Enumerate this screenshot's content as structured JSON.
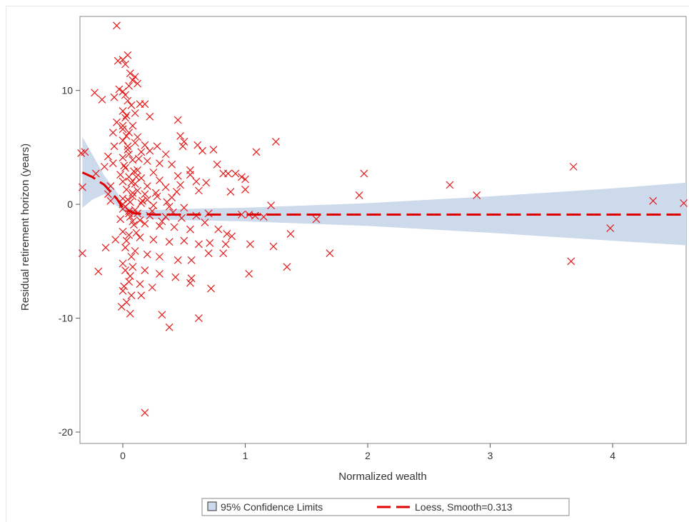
{
  "chart_data": {
    "type": "scatter",
    "title": "",
    "xlabel": "Normalized wealth",
    "ylabel": "Residual retirement horizon (years)",
    "xlim": [
      -0.35,
      4.6
    ],
    "ylim": [
      -21,
      16.5
    ],
    "xticks": [
      0,
      1,
      2,
      3,
      4
    ],
    "yticks": [
      -20,
      -10,
      0,
      10
    ],
    "grid": false,
    "legend_position": "bottom",
    "legend": [
      {
        "kind": "band",
        "label": "95% Confidence Limits",
        "color": "#ccdaeb"
      },
      {
        "kind": "dashed-line",
        "label": "Loess, Smooth=0.313",
        "color": "#e00000"
      }
    ],
    "marker_color": "#e51919",
    "marker": "x",
    "series": [
      {
        "type": "scatter",
        "points": [
          [
            -0.05,
            15.7
          ],
          [
            0.0,
            12.7
          ],
          [
            0.04,
            13.1
          ],
          [
            0.02,
            12.3
          ],
          [
            -0.04,
            12.6
          ],
          [
            0.06,
            11.5
          ],
          [
            0.1,
            11.2
          ],
          [
            0.08,
            10.9
          ],
          [
            0.12,
            10.6
          ],
          [
            0.05,
            10.4
          ],
          [
            -0.03,
            10.1
          ],
          [
            0.0,
            9.9
          ],
          [
            0.02,
            9.6
          ],
          [
            -0.07,
            9.4
          ],
          [
            0.04,
            9.1
          ],
          [
            0.07,
            8.7
          ],
          [
            0.14,
            8.8
          ],
          [
            0.18,
            8.8
          ],
          [
            -0.23,
            9.8
          ],
          [
            -0.17,
            9.2
          ],
          [
            0.0,
            8.2
          ],
          [
            0.1,
            8.0
          ],
          [
            0.22,
            7.7
          ],
          [
            0.45,
            7.4
          ],
          [
            0.02,
            7.6
          ],
          [
            -0.05,
            7.2
          ],
          [
            0.08,
            6.9
          ],
          [
            0.0,
            6.6
          ],
          [
            0.05,
            6.3
          ],
          [
            -0.08,
            6.3
          ],
          [
            0.03,
            6.0
          ],
          [
            0.12,
            5.9
          ],
          [
            0.47,
            6.0
          ],
          [
            0.5,
            5.5
          ],
          [
            0.49,
            5.1
          ],
          [
            0.0,
            5.6
          ],
          [
            0.1,
            5.4
          ],
          [
            0.18,
            5.2
          ],
          [
            0.28,
            5.1
          ],
          [
            -0.07,
            5.1
          ],
          [
            0.04,
            4.8
          ],
          [
            0.15,
            4.6
          ],
          [
            0.22,
            4.7
          ],
          [
            0.35,
            4.4
          ],
          [
            0.61,
            5.2
          ],
          [
            0.65,
            4.7
          ],
          [
            0.74,
            4.8
          ],
          [
            -0.31,
            4.6
          ],
          [
            -0.34,
            4.5
          ],
          [
            -0.12,
            4.2
          ],
          [
            0.0,
            4.1
          ],
          [
            0.08,
            3.9
          ],
          [
            0.2,
            3.8
          ],
          [
            0.3,
            3.6
          ],
          [
            0.4,
            3.5
          ],
          [
            0.77,
            3.5
          ],
          [
            0.55,
            3.0
          ],
          [
            -0.08,
            3.6
          ],
          [
            -0.15,
            3.3
          ],
          [
            0.02,
            3.2
          ],
          [
            0.12,
            3.0
          ],
          [
            0.25,
            2.8
          ],
          [
            0.45,
            2.5
          ],
          [
            0.55,
            2.6
          ],
          [
            0.82,
            2.7
          ],
          [
            0.86,
            2.7
          ],
          [
            0.92,
            2.7
          ],
          [
            0.97,
            2.4
          ],
          [
            1.0,
            2.2
          ],
          [
            -0.02,
            2.6
          ],
          [
            -0.22,
            2.7
          ],
          [
            0.05,
            2.4
          ],
          [
            0.15,
            2.3
          ],
          [
            0.3,
            2.1
          ],
          [
            0.6,
            2.0
          ],
          [
            0.68,
            1.9
          ],
          [
            0.0,
            2.0
          ],
          [
            0.1,
            1.8
          ],
          [
            0.2,
            1.6
          ],
          [
            0.35,
            1.5
          ],
          [
            0.47,
            1.7
          ],
          [
            -0.33,
            1.5
          ],
          [
            -0.1,
            1.6
          ],
          [
            1.0,
            1.3
          ],
          [
            0.88,
            1.1
          ],
          [
            0.62,
            1.2
          ],
          [
            0.03,
            1.3
          ],
          [
            0.08,
            1.0
          ],
          [
            0.18,
            0.9
          ],
          [
            0.28,
            0.7
          ],
          [
            0.4,
            0.6
          ],
          [
            -0.12,
            0.9
          ],
          [
            -0.1,
            0.3
          ],
          [
            0.0,
            0.5
          ],
          [
            0.06,
            0.2
          ],
          [
            0.15,
            0.1
          ],
          [
            0.25,
            -0.1
          ],
          [
            0.38,
            -0.2
          ],
          [
            0.5,
            -0.3
          ],
          [
            1.21,
            -0.1
          ],
          [
            1.93,
            0.8
          ],
          [
            1.97,
            2.7
          ],
          [
            1.25,
            5.5
          ],
          [
            1.09,
            4.6
          ],
          [
            2.67,
            1.7
          ],
          [
            2.89,
            0.8
          ],
          [
            3.68,
            3.3
          ],
          [
            4.33,
            0.3
          ],
          [
            4.58,
            0.1
          ],
          [
            0.0,
            -0.4
          ],
          [
            0.05,
            -0.6
          ],
          [
            0.12,
            -0.8
          ],
          [
            0.22,
            -1.0
          ],
          [
            0.35,
            -1.1
          ],
          [
            0.48,
            -1.2
          ],
          [
            0.6,
            -1.0
          ],
          [
            0.7,
            -0.8
          ],
          [
            0.97,
            -0.9
          ],
          [
            1.03,
            -0.9
          ],
          [
            1.08,
            -1.0
          ],
          [
            1.15,
            -1.1
          ],
          [
            1.58,
            -1.3
          ],
          [
            -0.02,
            -1.3
          ],
          [
            0.08,
            -1.5
          ],
          [
            0.18,
            -1.7
          ],
          [
            0.3,
            -1.9
          ],
          [
            0.42,
            -2.0
          ],
          [
            0.55,
            -2.2
          ],
          [
            0.67,
            -1.6
          ],
          [
            0.78,
            -2.2
          ],
          [
            0.85,
            -2.6
          ],
          [
            0.89,
            -2.8
          ],
          [
            1.37,
            -2.6
          ],
          [
            3.98,
            -2.1
          ],
          [
            0.0,
            -2.4
          ],
          [
            0.05,
            -2.7
          ],
          [
            0.14,
            -2.9
          ],
          [
            0.25,
            -3.1
          ],
          [
            0.38,
            -3.3
          ],
          [
            0.5,
            -3.2
          ],
          [
            0.62,
            -3.5
          ],
          [
            0.71,
            -3.4
          ],
          [
            0.84,
            -3.5
          ],
          [
            1.04,
            -3.5
          ],
          [
            1.23,
            -3.7
          ],
          [
            -0.06,
            -3.1
          ],
          [
            -0.14,
            -3.8
          ],
          [
            -0.33,
            -4.3
          ],
          [
            0.02,
            -3.8
          ],
          [
            0.1,
            -4.1
          ],
          [
            0.2,
            -4.4
          ],
          [
            0.3,
            -4.6
          ],
          [
            0.45,
            -4.9
          ],
          [
            0.56,
            -4.9
          ],
          [
            0.7,
            -4.3
          ],
          [
            0.82,
            -4.3
          ],
          [
            1.69,
            -4.3
          ],
          [
            1.34,
            -5.5
          ],
          [
            3.66,
            -5.0
          ],
          [
            -0.2,
            -5.9
          ],
          [
            0.0,
            -5.2
          ],
          [
            0.08,
            -5.5
          ],
          [
            0.18,
            -5.8
          ],
          [
            0.3,
            -6.1
          ],
          [
            0.43,
            -6.4
          ],
          [
            0.56,
            -6.5
          ],
          [
            1.03,
            -6.1
          ],
          [
            0.05,
            -6.8
          ],
          [
            0.14,
            -7.0
          ],
          [
            0.24,
            -7.3
          ],
          [
            0.55,
            -6.9
          ],
          [
            0.72,
            -7.4
          ],
          [
            0.0,
            -7.6
          ],
          [
            0.07,
            -8.0
          ],
          [
            0.15,
            -8.0
          ],
          [
            0.03,
            -8.6
          ],
          [
            -0.01,
            -9.0
          ],
          [
            0.06,
            -9.6
          ],
          [
            0.32,
            -9.7
          ],
          [
            0.38,
            -10.8
          ],
          [
            0.62,
            -10.0
          ],
          [
            0.18,
            -18.3
          ],
          [
            0.0,
            0.0
          ],
          [
            0.02,
            -0.2
          ],
          [
            0.04,
            0.4
          ],
          [
            0.06,
            -1.1
          ],
          [
            0.08,
            0.7
          ],
          [
            0.1,
            -0.5
          ],
          [
            0.12,
            1.2
          ],
          [
            0.14,
            -1.4
          ],
          [
            0.16,
            0.3
          ],
          [
            0.01,
            3.4
          ],
          [
            0.03,
            -3.2
          ],
          [
            0.05,
            4.4
          ],
          [
            0.07,
            -4.6
          ],
          [
            0.09,
            2.9
          ],
          [
            0.11,
            -2.5
          ],
          [
            0.13,
            4.0
          ],
          [
            0.02,
            -5.8
          ],
          [
            0.04,
            5.1
          ],
          [
            0.06,
            -6.3
          ],
          [
            0.0,
            6.9
          ],
          [
            0.01,
            -7.2
          ],
          [
            0.03,
            7.8
          ],
          [
            0.05,
            -0.8
          ],
          [
            0.07,
            1.9
          ],
          [
            0.09,
            -1.8
          ],
          [
            0.11,
            2.4
          ],
          [
            0.2,
            0.4
          ],
          [
            0.24,
            -0.6
          ],
          [
            0.27,
            1.0
          ],
          [
            0.32,
            -1.5
          ],
          [
            0.36,
            0.2
          ],
          [
            0.41,
            -0.7
          ],
          [
            0.44,
            1.1
          ]
        ]
      },
      {
        "name": "Loess, Smooth=0.313",
        "type": "line",
        "x": [
          -0.33,
          -0.25,
          -0.15,
          -0.05,
          0.0,
          0.1,
          0.25,
          0.5,
          1.0,
          2.0,
          3.0,
          4.0,
          4.6
        ],
        "y": [
          2.8,
          2.4,
          1.7,
          0.5,
          -0.3,
          -0.8,
          -0.9,
          -0.9,
          -0.9,
          -0.9,
          -0.9,
          -0.9,
          -0.9
        ]
      },
      {
        "name": "95% Confidence Limits",
        "type": "band",
        "x": [
          -0.33,
          -0.25,
          -0.15,
          -0.05,
          0.0,
          0.1,
          0.25,
          0.5,
          1.0,
          2.0,
          3.0,
          4.0,
          4.6
        ],
        "lower": [
          -0.3,
          0.4,
          0.9,
          -0.1,
          -0.6,
          -1.1,
          -1.3,
          -1.4,
          -1.5,
          -1.9,
          -2.5,
          -3.2,
          -3.6
        ],
        "upper": [
          5.9,
          4.4,
          2.5,
          1.1,
          0.0,
          -0.5,
          -0.5,
          -0.4,
          -0.3,
          0.1,
          0.7,
          1.4,
          1.9
        ]
      }
    ]
  }
}
